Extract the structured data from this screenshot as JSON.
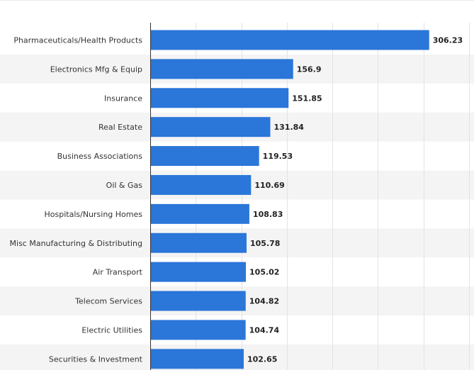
{
  "chart_data": {
    "type": "bar",
    "orientation": "horizontal",
    "categories": [
      "Pharmaceuticals/Health Products",
      "Electronics Mfg & Equip",
      "Insurance",
      "Real Estate",
      "Business Associations",
      "Oil & Gas",
      "Hospitals/Nursing Homes",
      "Misc Manufacturing & Distributing",
      "Air Transport",
      "Telecom Services",
      "Electric Utilities",
      "Securities & Investment"
    ],
    "values": [
      306.23,
      156.9,
      151.85,
      131.84,
      119.53,
      110.69,
      108.83,
      105.78,
      105.02,
      104.82,
      104.74,
      102.65
    ],
    "value_labels": [
      "306.23",
      "156.9",
      "151.85",
      "131.84",
      "119.53",
      "110.69",
      "108.83",
      "105.78",
      "105.02",
      "104.82",
      "104.74",
      "102.65"
    ],
    "xlim": [
      0,
      350
    ],
    "grid": true,
    "colors": {
      "bar": "#2b76d9",
      "band": "#f4f4f4",
      "grid": "#e3e3e3",
      "axis": "#333333"
    }
  }
}
